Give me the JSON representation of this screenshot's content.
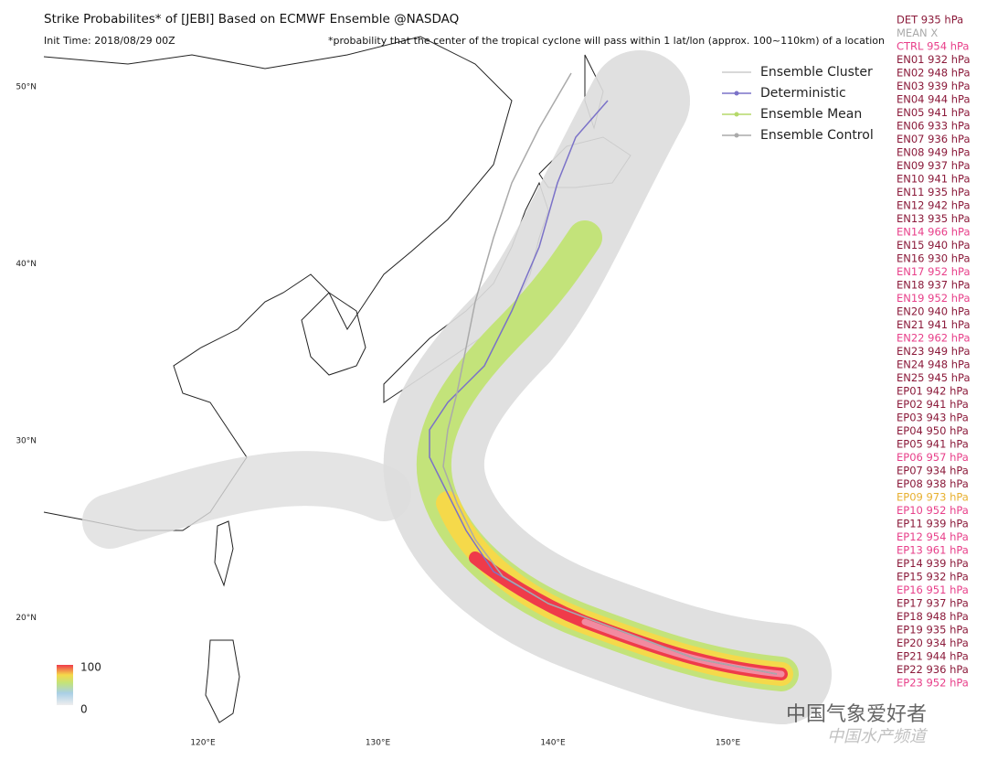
{
  "header": {
    "title": "Strike Probabilites* of [JEBI] Based on ECMWF Ensemble @NASDAQ",
    "init_time": "Init Time: 2018/08/29 00Z",
    "note": "*probability that the center of the tropical cyclone will pass within 1 lat/lon (approx. 100~110km) of a location"
  },
  "legend": [
    {
      "label": "Ensemble Cluster",
      "color": "#cccccc"
    },
    {
      "label": "Deterministic",
      "color": "#7b72c8"
    },
    {
      "label": "Ensemble Mean",
      "color": "#b5d96a"
    },
    {
      "label": "Ensemble Control",
      "color": "#aaaaaa"
    }
  ],
  "colorbar": {
    "max_label": "100",
    "min_label": "0"
  },
  "map": {
    "lon_ticks": [
      {
        "value": 120,
        "label": "120°E"
      },
      {
        "value": 130,
        "label": "130°E"
      },
      {
        "value": 140,
        "label": "140°E"
      },
      {
        "value": 150,
        "label": "150°E"
      }
    ],
    "lat_ticks": [
      {
        "value": 50,
        "label": "50°N"
      },
      {
        "value": 40,
        "label": "40°N"
      },
      {
        "value": 30,
        "label": "30°N"
      },
      {
        "value": 20,
        "label": "20°N"
      }
    ]
  },
  "members": [
    {
      "text": "DET 935 hPa",
      "color": "#8b1a3a"
    },
    {
      "text": "MEAN X",
      "color": "#aaaaaa"
    },
    {
      "text": "CTRL 954 hPa",
      "color": "#e8408a"
    },
    {
      "text": "EN01 932 hPa",
      "color": "#8b1a3a"
    },
    {
      "text": "EN02 948 hPa",
      "color": "#8b1a3a"
    },
    {
      "text": "EN03 939 hPa",
      "color": "#8b1a3a"
    },
    {
      "text": "EN04 944 hPa",
      "color": "#8b1a3a"
    },
    {
      "text": "EN05 941 hPa",
      "color": "#8b1a3a"
    },
    {
      "text": "EN06 933 hPa",
      "color": "#8b1a3a"
    },
    {
      "text": "EN07 936 hPa",
      "color": "#8b1a3a"
    },
    {
      "text": "EN08 949 hPa",
      "color": "#8b1a3a"
    },
    {
      "text": "EN09 937 hPa",
      "color": "#8b1a3a"
    },
    {
      "text": "EN10 941 hPa",
      "color": "#8b1a3a"
    },
    {
      "text": "EN11 935 hPa",
      "color": "#8b1a3a"
    },
    {
      "text": "EN12 942 hPa",
      "color": "#8b1a3a"
    },
    {
      "text": "EN13 935 hPa",
      "color": "#8b1a3a"
    },
    {
      "text": "EN14 966 hPa",
      "color": "#e8408a"
    },
    {
      "text": "EN15 940 hPa",
      "color": "#8b1a3a"
    },
    {
      "text": "EN16 930 hPa",
      "color": "#8b1a3a"
    },
    {
      "text": "EN17 952 hPa",
      "color": "#e8408a"
    },
    {
      "text": "EN18 937 hPa",
      "color": "#8b1a3a"
    },
    {
      "text": "EN19 952 hPa",
      "color": "#e8408a"
    },
    {
      "text": "EN20 940 hPa",
      "color": "#8b1a3a"
    },
    {
      "text": "EN21 941 hPa",
      "color": "#8b1a3a"
    },
    {
      "text": "EN22 962 hPa",
      "color": "#e8408a"
    },
    {
      "text": "EN23 949 hPa",
      "color": "#8b1a3a"
    },
    {
      "text": "EN24 948 hPa",
      "color": "#8b1a3a"
    },
    {
      "text": "EN25 945 hPa",
      "color": "#8b1a3a"
    },
    {
      "text": "EP01 942 hPa",
      "color": "#8b1a3a"
    },
    {
      "text": "EP02 941 hPa",
      "color": "#8b1a3a"
    },
    {
      "text": "EP03 943 hPa",
      "color": "#8b1a3a"
    },
    {
      "text": "EP04 950 hPa",
      "color": "#8b1a3a"
    },
    {
      "text": "EP05 941 hPa",
      "color": "#8b1a3a"
    },
    {
      "text": "EP06 957 hPa",
      "color": "#e8408a"
    },
    {
      "text": "EP07 934 hPa",
      "color": "#8b1a3a"
    },
    {
      "text": "EP08 938 hPa",
      "color": "#8b1a3a"
    },
    {
      "text": "EP09 973 hPa",
      "color": "#e8b030"
    },
    {
      "text": "EP10 952 hPa",
      "color": "#e8408a"
    },
    {
      "text": "EP11 939 hPa",
      "color": "#8b1a3a"
    },
    {
      "text": "EP12 954 hPa",
      "color": "#e8408a"
    },
    {
      "text": "EP13 961 hPa",
      "color": "#e8408a"
    },
    {
      "text": "EP14 939 hPa",
      "color": "#8b1a3a"
    },
    {
      "text": "EP15 932 hPa",
      "color": "#8b1a3a"
    },
    {
      "text": "EP16 951 hPa",
      "color": "#e8408a"
    },
    {
      "text": "EP17 937 hPa",
      "color": "#8b1a3a"
    },
    {
      "text": "EP18 948 hPa",
      "color": "#8b1a3a"
    },
    {
      "text": "EP19 935 hPa",
      "color": "#8b1a3a"
    },
    {
      "text": "EP20 934 hPa",
      "color": "#8b1a3a"
    },
    {
      "text": "EP21 944 hPa",
      "color": "#8b1a3a"
    },
    {
      "text": "EP22 936 hPa",
      "color": "#8b1a3a"
    },
    {
      "text": "EP23 952 hPa",
      "color": "#e8408a"
    }
  ],
  "watermark": {
    "line1": "中国气象爱好者",
    "line2": "中国水产频道"
  }
}
